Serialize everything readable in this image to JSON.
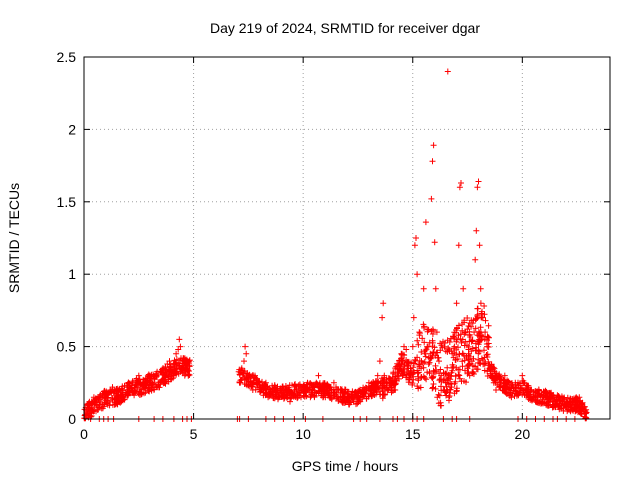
{
  "chart_data": {
    "type": "scatter",
    "title": "Day 219 of 2024, SRMTID for receiver dgar",
    "xlabel": "GPS time / hours",
    "ylabel": "SRMTID / TECUs",
    "xlim": [
      0,
      24
    ],
    "ylim": [
      0,
      2.5
    ],
    "xticks": [
      0,
      5,
      10,
      15,
      20
    ],
    "yticks": [
      0,
      0.5,
      1,
      1.5,
      2,
      2.5
    ],
    "xtick_labels": [
      "0",
      "5",
      "10",
      "15",
      "20"
    ],
    "ytick_labels": [
      "0",
      "0.5",
      "1",
      "1.5",
      "2",
      "2.5"
    ],
    "grid": true,
    "marker": "+",
    "marker_color": "#ff0000",
    "series": [
      {
        "name": "dgar",
        "points": [
          [
            0.05,
            0.03
          ],
          [
            0.15,
            0.05
          ],
          [
            0.25,
            0.08
          ],
          [
            0.35,
            0.12
          ],
          [
            0.45,
            0.15
          ],
          [
            0.55,
            0.1
          ],
          [
            0.7,
            0.08
          ],
          [
            0.85,
            0.1
          ],
          [
            1.0,
            0.15
          ],
          [
            1.1,
            0.18
          ],
          [
            1.2,
            0.2
          ],
          [
            1.3,
            0.22
          ],
          [
            1.4,
            0.2
          ],
          [
            1.5,
            0.16
          ],
          [
            1.6,
            0.13
          ],
          [
            1.7,
            0.12
          ],
          [
            1.8,
            0.15
          ],
          [
            1.9,
            0.17
          ],
          [
            2.0,
            0.2
          ],
          [
            2.1,
            0.23
          ],
          [
            2.2,
            0.25
          ],
          [
            2.3,
            0.2
          ],
          [
            2.4,
            0.28
          ],
          [
            2.5,
            0.3
          ],
          [
            2.6,
            0.24
          ],
          [
            2.7,
            0.27
          ],
          [
            2.8,
            0.22
          ],
          [
            2.9,
            0.26
          ],
          [
            3.0,
            0.3
          ],
          [
            3.1,
            0.25
          ],
          [
            3.2,
            0.28
          ],
          [
            3.3,
            0.3
          ],
          [
            3.4,
            0.24
          ],
          [
            3.5,
            0.33
          ],
          [
            3.6,
            0.35
          ],
          [
            3.7,
            0.3
          ],
          [
            3.8,
            0.38
          ],
          [
            3.9,
            0.4
          ],
          [
            4.0,
            0.32
          ],
          [
            4.1,
            0.3
          ],
          [
            4.2,
            0.45
          ],
          [
            4.3,
            0.48
          ],
          [
            4.35,
            0.55
          ],
          [
            4.4,
            0.5
          ],
          [
            4.5,
            0.35
          ],
          [
            4.55,
            0.42
          ],
          [
            4.6,
            0.3
          ],
          [
            4.7,
            0.38
          ],
          [
            4.8,
            0.4
          ],
          [
            7.1,
            0.25
          ],
          [
            7.2,
            0.35
          ],
          [
            7.3,
            0.4
          ],
          [
            7.35,
            0.5
          ],
          [
            7.4,
            0.45
          ],
          [
            7.5,
            0.3
          ],
          [
            7.6,
            0.25
          ],
          [
            7.7,
            0.2
          ],
          [
            7.8,
            0.3
          ],
          [
            7.9,
            0.22
          ],
          [
            8.0,
            0.25
          ],
          [
            8.1,
            0.2
          ],
          [
            8.2,
            0.18
          ],
          [
            8.3,
            0.25
          ],
          [
            8.4,
            0.15
          ],
          [
            8.5,
            0.2
          ],
          [
            8.6,
            0.18
          ],
          [
            8.7,
            0.22
          ],
          [
            8.8,
            0.2
          ],
          [
            8.9,
            0.15
          ],
          [
            9.0,
            0.18
          ],
          [
            9.1,
            0.2
          ],
          [
            9.2,
            0.17
          ],
          [
            9.3,
            0.15
          ],
          [
            9.4,
            0.12
          ],
          [
            9.5,
            0.18
          ],
          [
            9.6,
            0.2
          ],
          [
            9.7,
            0.22
          ],
          [
            9.8,
            0.18
          ],
          [
            9.9,
            0.15
          ],
          [
            10.0,
            0.2
          ],
          [
            10.1,
            0.22
          ],
          [
            10.2,
            0.25
          ],
          [
            10.3,
            0.2
          ],
          [
            10.4,
            0.18
          ],
          [
            10.5,
            0.22
          ],
          [
            10.6,
            0.25
          ],
          [
            10.7,
            0.3
          ],
          [
            10.8,
            0.2
          ],
          [
            10.9,
            0.15
          ],
          [
            11.0,
            0.2
          ],
          [
            11.1,
            0.18
          ],
          [
            11.2,
            0.22
          ],
          [
            11.3,
            0.2
          ],
          [
            11.4,
            0.25
          ],
          [
            11.5,
            0.22
          ],
          [
            11.6,
            0.2
          ],
          [
            11.7,
            0.15
          ],
          [
            11.8,
            0.12
          ],
          [
            11.9,
            0.15
          ],
          [
            12.0,
            0.12
          ],
          [
            12.1,
            0.1
          ],
          [
            12.2,
            0.15
          ],
          [
            12.3,
            0.12
          ],
          [
            12.4,
            0.18
          ],
          [
            12.5,
            0.15
          ],
          [
            12.6,
            0.12
          ],
          [
            12.7,
            0.15
          ],
          [
            12.8,
            0.18
          ],
          [
            12.9,
            0.2
          ],
          [
            13.0,
            0.25
          ],
          [
            13.1,
            0.22
          ],
          [
            13.2,
            0.25
          ],
          [
            13.3,
            0.2
          ],
          [
            13.4,
            0.3
          ],
          [
            13.5,
            0.4
          ],
          [
            13.6,
            0.7
          ],
          [
            13.65,
            0.8
          ],
          [
            13.7,
            0.3
          ],
          [
            13.8,
            0.25
          ],
          [
            13.9,
            0.2
          ],
          [
            14.0,
            0.22
          ],
          [
            14.1,
            0.25
          ],
          [
            14.2,
            0.2
          ],
          [
            14.3,
            0.3
          ],
          [
            14.4,
            0.35
          ],
          [
            14.5,
            0.45
          ],
          [
            14.6,
            0.5
          ],
          [
            14.7,
            0.48
          ],
          [
            14.8,
            0.35
          ],
          [
            14.9,
            0.3
          ],
          [
            15.0,
            0.5
          ],
          [
            15.05,
            0.7
          ],
          [
            15.1,
            1.2
          ],
          [
            15.15,
            1.25
          ],
          [
            15.2,
            1.0
          ],
          [
            15.3,
            0.6
          ],
          [
            15.4,
            0.4
          ],
          [
            15.5,
            0.9
          ],
          [
            15.6,
            1.36
          ],
          [
            15.7,
            0.5
          ],
          [
            15.8,
            0.45
          ],
          [
            15.85,
            1.52
          ],
          [
            15.9,
            1.78
          ],
          [
            15.95,
            1.89
          ],
          [
            16.0,
            1.22
          ],
          [
            16.05,
            0.9
          ],
          [
            16.1,
            0.6
          ],
          [
            16.2,
            0.4
          ],
          [
            16.3,
            0.3
          ],
          [
            16.4,
            0.2
          ],
          [
            16.5,
            0.25
          ],
          [
            16.6,
            2.4
          ],
          [
            16.7,
            0.3
          ],
          [
            16.8,
            0.45
          ],
          [
            16.9,
            0.5
          ],
          [
            17.0,
            0.8
          ],
          [
            17.1,
            1.2
          ],
          [
            17.15,
            1.6
          ],
          [
            17.2,
            1.63
          ],
          [
            17.3,
            0.9
          ],
          [
            17.4,
            0.6
          ],
          [
            17.5,
            0.35
          ],
          [
            17.6,
            0.3
          ],
          [
            17.7,
            0.4
          ],
          [
            17.8,
            0.6
          ],
          [
            17.85,
            1.1
          ],
          [
            17.9,
            1.3
          ],
          [
            17.95,
            1.6
          ],
          [
            18.0,
            1.64
          ],
          [
            18.05,
            1.2
          ],
          [
            18.1,
            0.9
          ],
          [
            18.2,
            0.7
          ],
          [
            18.3,
            0.6
          ],
          [
            18.4,
            0.5
          ],
          [
            18.5,
            0.35
          ],
          [
            18.6,
            0.3
          ],
          [
            18.7,
            0.25
          ],
          [
            18.8,
            0.2
          ],
          [
            18.9,
            0.3
          ],
          [
            19.0,
            0.25
          ],
          [
            19.1,
            0.2
          ],
          [
            19.2,
            0.3
          ],
          [
            19.3,
            0.25
          ],
          [
            19.4,
            0.2
          ],
          [
            19.5,
            0.15
          ],
          [
            19.6,
            0.22
          ],
          [
            19.7,
            0.2
          ],
          [
            19.8,
            0.25
          ],
          [
            19.9,
            0.2
          ],
          [
            20.0,
            0.3
          ],
          [
            20.1,
            0.25
          ],
          [
            20.2,
            0.2
          ],
          [
            20.3,
            0.15
          ],
          [
            20.4,
            0.2
          ],
          [
            20.5,
            0.15
          ],
          [
            20.6,
            0.12
          ],
          [
            20.7,
            0.15
          ],
          [
            20.8,
            0.12
          ],
          [
            20.9,
            0.15
          ],
          [
            21.0,
            0.18
          ],
          [
            21.1,
            0.15
          ],
          [
            21.2,
            0.12
          ],
          [
            21.3,
            0.15
          ],
          [
            21.4,
            0.1
          ],
          [
            21.5,
            0.12
          ],
          [
            21.6,
            0.1
          ],
          [
            21.7,
            0.15
          ],
          [
            21.8,
            0.12
          ],
          [
            21.9,
            0.1
          ],
          [
            22.0,
            0.08
          ],
          [
            22.1,
            0.1
          ],
          [
            22.2,
            0.12
          ],
          [
            22.3,
            0.1
          ],
          [
            22.4,
            0.08
          ],
          [
            22.5,
            0.12
          ],
          [
            22.6,
            0.15
          ],
          [
            22.7,
            0.08
          ],
          [
            22.8,
            0.05
          ],
          [
            22.9,
            0.04
          ]
        ],
        "density_segments": [
          {
            "x0": 0.0,
            "x1": 4.85,
            "levels": [
              [
                0.0,
                0.03
              ],
              [
                0.5,
                0.1
              ],
              [
                1.0,
                0.14
              ],
              [
                1.5,
                0.15
              ],
              [
                2.0,
                0.2
              ],
              [
                2.5,
                0.22
              ],
              [
                3.0,
                0.25
              ],
              [
                3.5,
                0.28
              ],
              [
                4.0,
                0.33
              ],
              [
                4.4,
                0.38
              ],
              [
                4.85,
                0.35
              ]
            ],
            "spread": 0.06,
            "count": 420,
            "seed": 11
          },
          {
            "x0": 7.05,
            "x1": 13.4,
            "levels": [
              [
                7.05,
                0.3
              ],
              [
                7.5,
                0.28
              ],
              [
                8.0,
                0.22
              ],
              [
                9.0,
                0.18
              ],
              [
                10.0,
                0.2
              ],
              [
                11.0,
                0.2
              ],
              [
                12.0,
                0.15
              ],
              [
                12.5,
                0.15
              ],
              [
                13.0,
                0.2
              ],
              [
                13.4,
                0.22
              ]
            ],
            "spread": 0.05,
            "count": 480,
            "seed": 29
          },
          {
            "x0": 13.4,
            "x1": 15.2,
            "levels": [
              [
                13.4,
                0.22
              ],
              [
                14.0,
                0.22
              ],
              [
                14.5,
                0.38
              ],
              [
                15.0,
                0.3
              ],
              [
                15.2,
                0.4
              ]
            ],
            "spread": 0.08,
            "count": 140,
            "seed": 41
          },
          {
            "x0": 15.2,
            "x1": 18.5,
            "levels": [
              [
                15.2,
                0.4
              ],
              [
                15.7,
                0.5
              ],
              [
                16.2,
                0.3
              ],
              [
                16.7,
                0.35
              ],
              [
                17.2,
                0.45
              ],
              [
                17.7,
                0.5
              ],
              [
                18.2,
                0.6
              ],
              [
                18.5,
                0.4
              ]
            ],
            "spread": 0.22,
            "count": 320,
            "seed": 53
          },
          {
            "x0": 18.5,
            "x1": 22.95,
            "levels": [
              [
                18.5,
                0.35
              ],
              [
                19.0,
                0.25
              ],
              [
                19.5,
                0.2
              ],
              [
                20.0,
                0.22
              ],
              [
                20.5,
                0.16
              ],
              [
                21.0,
                0.15
              ],
              [
                21.5,
                0.12
              ],
              [
                22.0,
                0.1
              ],
              [
                22.5,
                0.1
              ],
              [
                22.95,
                0.04
              ]
            ],
            "spread": 0.05,
            "count": 380,
            "seed": 67
          }
        ],
        "baseline_markers_x": [
          0.3,
          0.7,
          0.9,
          1.1,
          1.35,
          2.5,
          3.2,
          3.6,
          4.1,
          4.5,
          4.7,
          4.9,
          7.0,
          7.1,
          7.5,
          8.3,
          8.7,
          9.1,
          9.6,
          10.1,
          10.9,
          12.3,
          12.6,
          12.9,
          13.5,
          14.1,
          14.3,
          14.6,
          15.0,
          15.2,
          15.5,
          16.4,
          16.8,
          17.0,
          17.6,
          19.8,
          20.2,
          20.6,
          21.0,
          21.4,
          21.6,
          22.0,
          22.4
        ]
      }
    ]
  }
}
